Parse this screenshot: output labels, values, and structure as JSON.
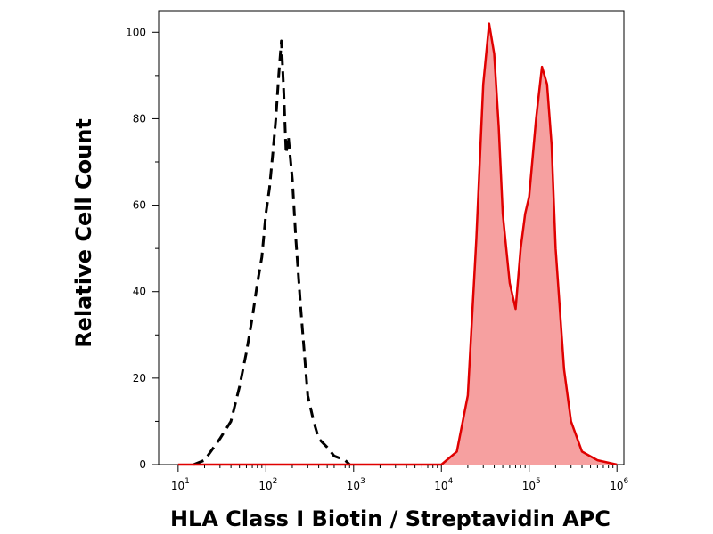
{
  "chart_data": {
    "type": "area",
    "xlabel": "HLA Class I Biotin / Streptavidin APC",
    "ylabel": "Relative Cell Count",
    "xscale": "log",
    "xlim": [
      6,
      1200000
    ],
    "ylim": [
      0,
      105
    ],
    "grid": false,
    "x_ticks": [
      {
        "base": "10",
        "exp": "1",
        "value": 10
      },
      {
        "base": "10",
        "exp": "2",
        "value": 100
      },
      {
        "base": "10",
        "exp": "3",
        "value": 1000
      },
      {
        "base": "10",
        "exp": "4",
        "value": 10000
      },
      {
        "base": "10",
        "exp": "5",
        "value": 100000
      },
      {
        "base": "10",
        "exp": "6",
        "value": 1000000
      }
    ],
    "y_ticks": [
      "0",
      "20",
      "40",
      "60",
      "80",
      "100"
    ],
    "series": [
      {
        "style": "dashed",
        "color": "#000000",
        "fill": "none",
        "x": [
          15,
          20,
          30,
          40,
          50,
          60,
          70,
          80,
          90,
          100,
          110,
          120,
          130,
          140,
          150,
          160,
          170,
          180,
          200,
          220,
          250,
          300,
          350,
          400,
          500,
          600,
          800,
          900
        ],
        "y": [
          0,
          1,
          6,
          10,
          18,
          26,
          34,
          42,
          48,
          58,
          64,
          72,
          80,
          90,
          98,
          86,
          72,
          76,
          66,
          52,
          36,
          16,
          10,
          6,
          4,
          2,
          1,
          0
        ]
      },
      {
        "style": "solid",
        "color": "#e00000",
        "fill": "#f6a0a0",
        "x": [
          10,
          10000,
          15000,
          20000,
          25000,
          30000,
          35000,
          40000,
          45000,
          50000,
          60000,
          70000,
          80000,
          90000,
          100000,
          120000,
          140000,
          160000,
          180000,
          200000,
          250000,
          300000,
          400000,
          600000,
          1000000
        ],
        "y": [
          0,
          0,
          3,
          16,
          52,
          88,
          102,
          95,
          78,
          58,
          42,
          36,
          50,
          58,
          62,
          80,
          92,
          88,
          74,
          50,
          22,
          10,
          3,
          1,
          0
        ]
      }
    ]
  }
}
